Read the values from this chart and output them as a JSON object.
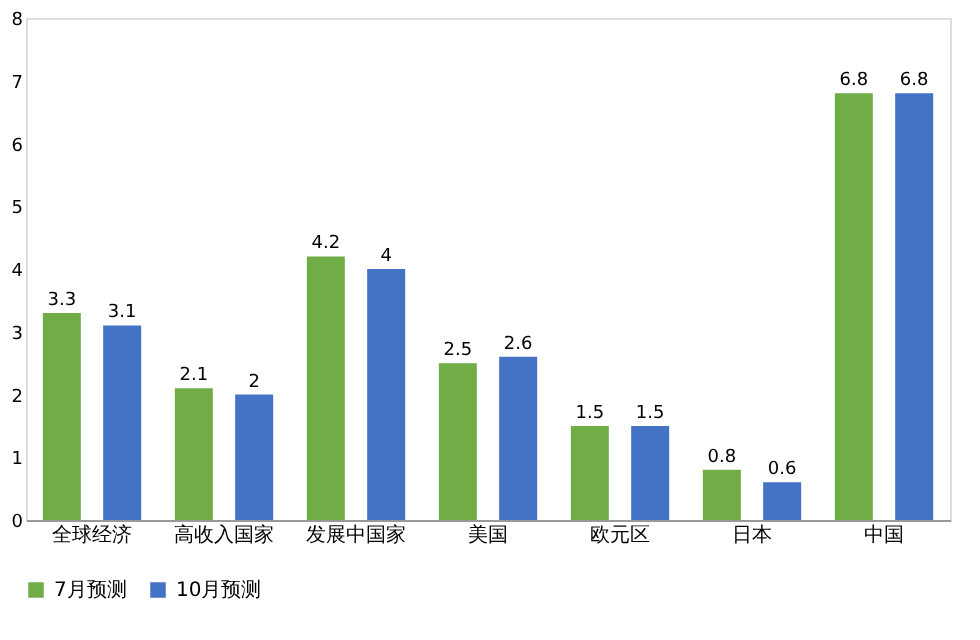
{
  "chart_data": {
    "type": "bar",
    "categories": [
      "全球经济",
      "高收入国家",
      "发展中国家",
      "美国",
      "欧元区",
      "日本",
      "中国"
    ],
    "series": [
      {
        "name": "7月预测",
        "color": "#70ad47",
        "values": [
          3.3,
          2.1,
          4.2,
          2.5,
          1.5,
          0.8,
          6.8
        ]
      },
      {
        "name": "10月预测",
        "color": "#4472c4",
        "values": [
          3.1,
          2,
          4,
          2.6,
          1.5,
          0.6,
          6.8
        ]
      }
    ],
    "ylim": [
      0,
      8
    ],
    "yticks": [
      0,
      1,
      2,
      3,
      4,
      5,
      6,
      7,
      8
    ],
    "grid": false,
    "legend": "bottom",
    "data_labels": true
  }
}
